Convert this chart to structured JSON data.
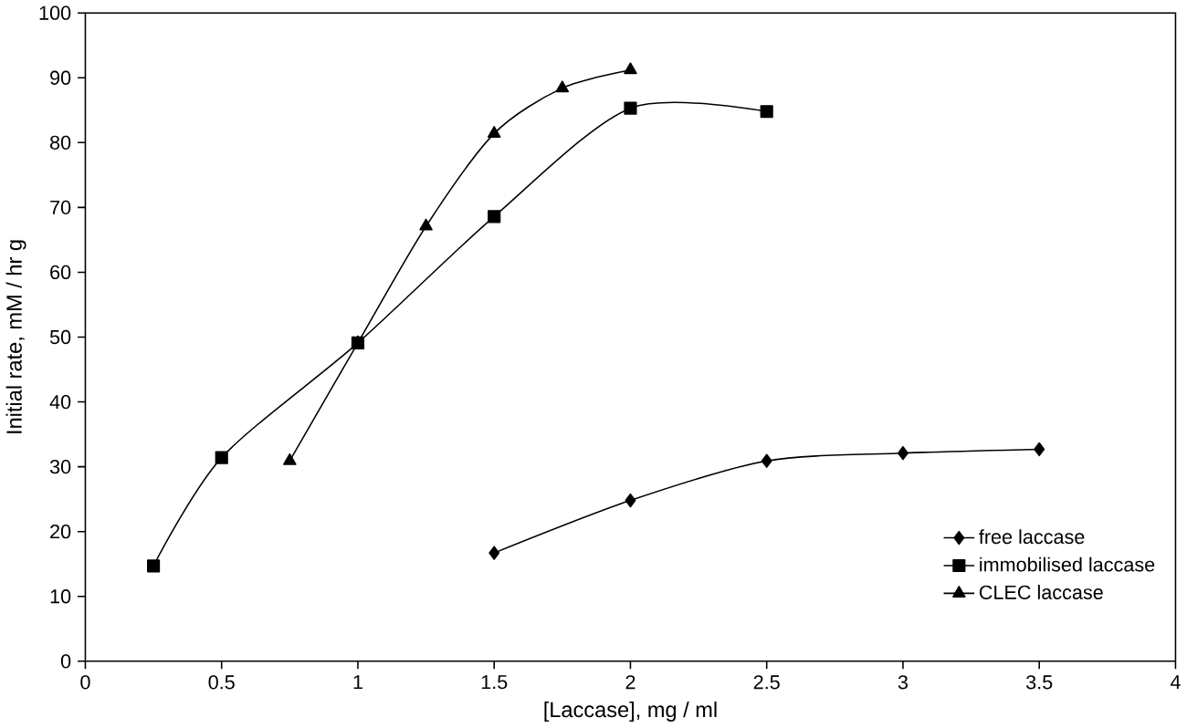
{
  "chart_data": {
    "type": "line",
    "xlabel": "[Laccase], mg / ml",
    "ylabel": "Initial rate, mM / hr g",
    "xlim": [
      0,
      4
    ],
    "xticks": [
      0,
      0.5,
      1,
      1.5,
      2,
      2.5,
      3,
      3.5,
      4
    ],
    "ylim": [
      0,
      100
    ],
    "yticks": [
      0,
      10,
      20,
      30,
      40,
      50,
      60,
      70,
      80,
      90,
      100
    ],
    "legend": "bottom right",
    "grid": false,
    "series": [
      {
        "name": "free laccase",
        "color": "#000000",
        "marker": "diamond",
        "x": [
          1.5,
          2,
          2.5,
          3,
          3.5
        ],
        "values": [
          16.7,
          24.8,
          30.9,
          32.1,
          32.7
        ]
      },
      {
        "name": "immobilised laccase",
        "color": "#000000",
        "marker": "square",
        "x": [
          0.25,
          0.5,
          1,
          1.5,
          2,
          2.5
        ],
        "values": [
          14.7,
          31.4,
          49.1,
          68.6,
          85.3,
          84.8
        ]
      },
      {
        "name": "CLEC laccase",
        "color": "#000000",
        "marker": "triangle",
        "x": [
          0.75,
          1,
          1.25,
          1.5,
          1.75,
          2
        ],
        "values": [
          30.9,
          49.1,
          67.1,
          81.4,
          88.4,
          91.2
        ]
      }
    ]
  }
}
